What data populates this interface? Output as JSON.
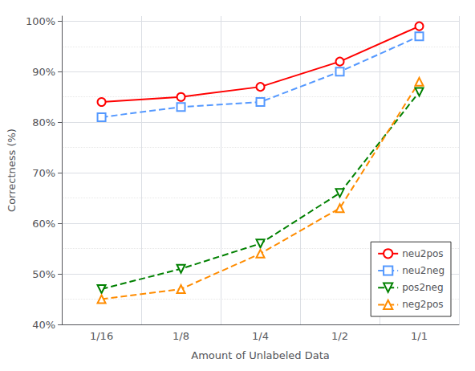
{
  "chart_data": {
    "type": "line",
    "xlabel": "Amount of Unlabeled Data",
    "ylabel": "Correctness (%)",
    "categories": [
      "1/16",
      "1/8",
      "1/4",
      "1/2",
      "1/1"
    ],
    "series": [
      {
        "name": "neu2pos",
        "color": "red",
        "marker": "circle",
        "line_style": "solid",
        "values": [
          84,
          85,
          87,
          92,
          99
        ]
      },
      {
        "name": "neu2neg",
        "color": "#5599ff",
        "marker": "square",
        "line_style": "dashed",
        "values": [
          81,
          83,
          84,
          90,
          97
        ]
      },
      {
        "name": "pos2neg",
        "color": "green",
        "marker": "triangle-down",
        "line_style": "dashed",
        "values": [
          47,
          51,
          56,
          66,
          86
        ]
      },
      {
        "name": "neg2pos",
        "color": "darkorange",
        "marker": "triangle-up",
        "line_style": "dashed",
        "values": [
          45,
          47,
          54,
          63,
          88
        ]
      }
    ],
    "ylim": [
      40,
      101
    ],
    "yticks": [
      {
        "value": 40,
        "label": "40%"
      },
      {
        "value": 50,
        "label": "50%"
      },
      {
        "value": 60,
        "label": "60%"
      },
      {
        "value": 70,
        "label": "70%"
      },
      {
        "value": 80,
        "label": "80%"
      },
      {
        "value": 90,
        "label": "90%"
      },
      {
        "value": 100,
        "label": "100%"
      }
    ],
    "grid": true,
    "legend": "lower right"
  }
}
